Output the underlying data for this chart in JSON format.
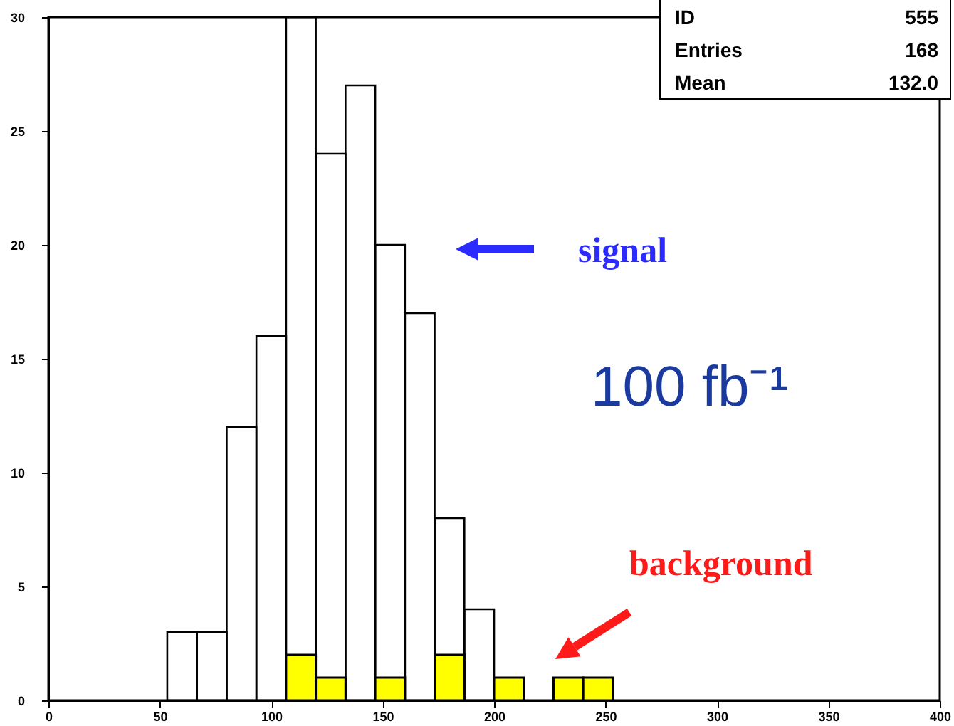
{
  "chart_data": {
    "type": "histogram",
    "bins": [
      53.33,
      66.67,
      80,
      93.33,
      106.67,
      120,
      133.33,
      146.67,
      160,
      173.33,
      186.67,
      200,
      213.33,
      226.67,
      240,
      253.33
    ],
    "series": [
      {
        "color": "#000000",
        "values": [
          3,
          3,
          12,
          16,
          30,
          24,
          27,
          20,
          17,
          8,
          4,
          0,
          0,
          0,
          0
        ]
      },
      {
        "color": "#ffff00",
        "values": [
          0,
          0,
          0,
          0,
          2,
          1,
          0,
          1,
          0,
          2,
          0,
          1,
          0,
          1,
          1
        ]
      }
    ],
    "xlim": [
      0,
      400
    ],
    "xticks": [
      0,
      50,
      100,
      150,
      200,
      250,
      300,
      350,
      400
    ],
    "ylim": [
      0,
      30
    ],
    "yticks": [
      0,
      5,
      10,
      15,
      20,
      25,
      30
    ],
    "grid": false,
    "annotations": [
      "signal",
      "background",
      "100 fb⁻¹",
      "ID 555",
      "Entries 168",
      "Mean 132.0"
    ]
  }
}
